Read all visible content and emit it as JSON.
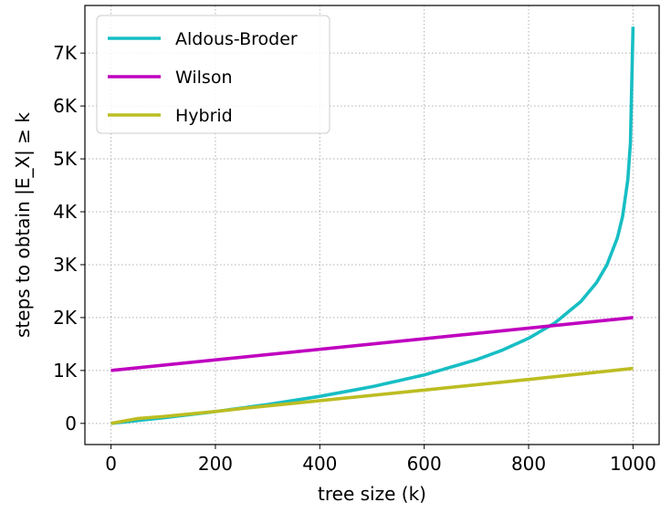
{
  "chart_data": {
    "type": "line",
    "title": "",
    "xlabel": "tree size (k)",
    "ylabel": "steps to obtain |E_X| ≥ k",
    "xlim": [
      -50,
      1050
    ],
    "ylim": [
      -400,
      7900
    ],
    "xticks": [
      0,
      200,
      400,
      600,
      800,
      1000
    ],
    "xtick_labels": [
      "0",
      "200",
      "400",
      "600",
      "800",
      "1000"
    ],
    "yticks": [
      0,
      1000,
      2000,
      3000,
      4000,
      5000,
      6000,
      7000
    ],
    "ytick_labels": [
      "0",
      "1K",
      "2K",
      "3K",
      "4K",
      "5K",
      "6K",
      "7K"
    ],
    "grid": true,
    "legend_position": "top-left",
    "series": [
      {
        "name": "Aldous-Broder",
        "color": "#17bec4",
        "x": [
          0,
          100,
          200,
          300,
          400,
          500,
          600,
          700,
          750,
          800,
          850,
          900,
          930,
          950,
          970,
          980,
          990,
          995,
          1000
        ],
        "y": [
          0,
          105,
          223,
          357,
          511,
          693,
          916,
          1204,
          1386,
          1609,
          1897,
          2303,
          2659,
          2996,
          3507,
          3912,
          4605,
          5298,
          7500
        ]
      },
      {
        "name": "Wilson",
        "color": "#bf00bf",
        "x": [
          0,
          1000
        ],
        "y": [
          1000,
          2000
        ]
      },
      {
        "name": "Hybrid",
        "color": "#bcbd22",
        "x": [
          0,
          50,
          100,
          200,
          250,
          400,
          600,
          800,
          1000
        ],
        "y": [
          0,
          90,
          130,
          225,
          280,
          430,
          630,
          830,
          1040
        ]
      }
    ]
  }
}
